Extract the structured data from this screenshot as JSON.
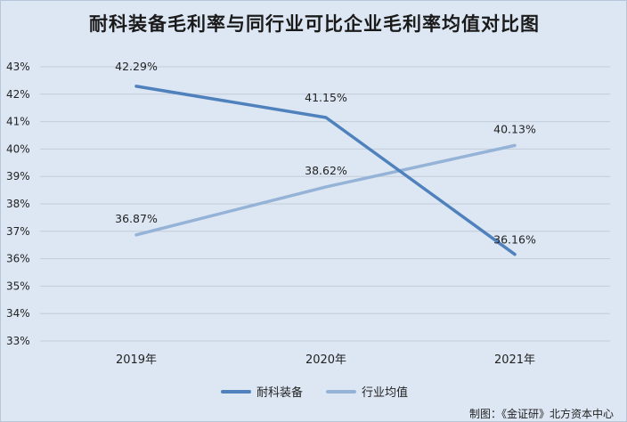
{
  "chart_data": {
    "type": "line",
    "title": "耐科装备毛利率与同行业可比企业毛利率均值对比图",
    "categories": [
      "2019年",
      "2020年",
      "2021年"
    ],
    "series": [
      {
        "name": "耐科装备",
        "values": [
          42.29,
          41.15,
          36.16
        ],
        "labels": [
          "42.29%",
          "41.15%",
          "36.16%"
        ],
        "color": "#4f81bd"
      },
      {
        "name": "行业均值",
        "values": [
          36.87,
          38.62,
          40.13
        ],
        "labels": [
          "36.87%",
          "38.62%",
          "40.13%"
        ],
        "color": "#95b3d7"
      }
    ],
    "ylim": [
      33,
      43
    ],
    "yticks": [
      "33%",
      "34%",
      "35%",
      "36%",
      "37%",
      "38%",
      "39%",
      "40%",
      "41%",
      "42%",
      "43%"
    ],
    "grid": true,
    "legend": "bottom"
  },
  "source": "制图：《金证研》北方资本中心"
}
